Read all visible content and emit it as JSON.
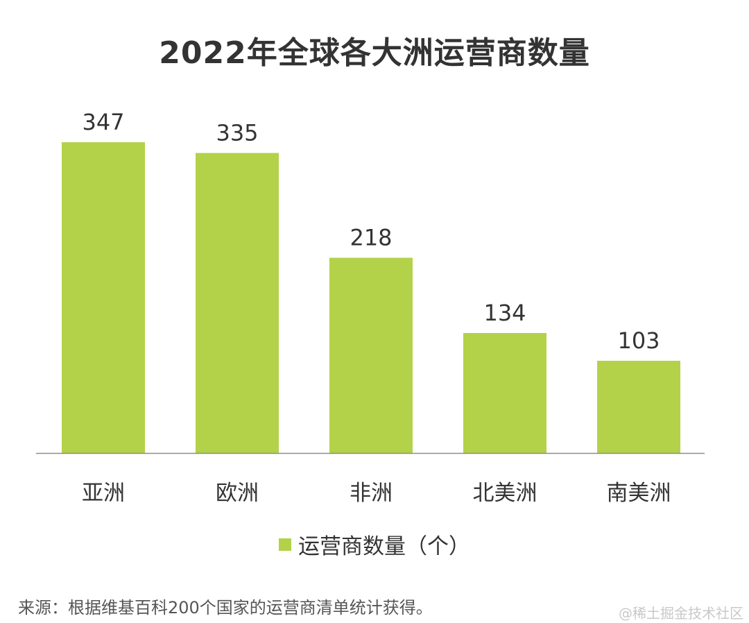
{
  "chart_data": {
    "type": "bar",
    "title": "2022年全球各大洲运营商数量",
    "categories": [
      "亚洲",
      "欧洲",
      "非洲",
      "北美洲",
      "南美洲"
    ],
    "series": [
      {
        "name": "运营商数量（个）",
        "values": [
          347,
          335,
          218,
          134,
          103
        ],
        "color": "#b3d249"
      }
    ],
    "xlabel": "",
    "ylabel": "",
    "ylim": [
      0,
      347
    ],
    "grid": false,
    "legend": "bottom-center",
    "data_labels": true
  },
  "footer": {
    "source": "来源：根据维基百科200个国家的运营商清单统计获得。",
    "watermark": "@稀土掘金技术社区"
  }
}
